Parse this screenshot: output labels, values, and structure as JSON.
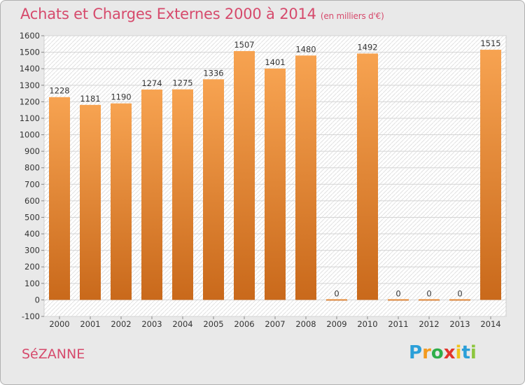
{
  "header": {
    "title": "Achats et Charges Externes 2000 à 2014",
    "subtitle": "(en milliers d'€)"
  },
  "footer": {
    "city": "SéZANNE"
  },
  "logo": {
    "text": "Proxiti",
    "letters": [
      {
        "ch": "P",
        "color": "#2b9fd8"
      },
      {
        "ch": "r",
        "color": "#f39a1f"
      },
      {
        "ch": "o",
        "color": "#2fae4a"
      },
      {
        "ch": "x",
        "color": "#e2352b"
      },
      {
        "ch": "i",
        "color": "#f0c419"
      },
      {
        "ch": "t",
        "color": "#2b9fd8"
      },
      {
        "ch": "i",
        "color": "#8dc63f"
      }
    ]
  },
  "chart_data": {
    "type": "bar",
    "categories": [
      "2000",
      "2001",
      "2002",
      "2003",
      "2004",
      "2005",
      "2006",
      "2007",
      "2008",
      "2009",
      "2010",
      "2011",
      "2012",
      "2013",
      "2014"
    ],
    "values": [
      1228,
      1181,
      1190,
      1274,
      1275,
      1336,
      1507,
      1401,
      1480,
      0,
      1492,
      0,
      0,
      0,
      1515
    ],
    "data_labels": [
      "1228",
      "1181",
      "1190",
      "1274",
      "1275",
      "1336",
      "1507",
      "1401",
      "1480",
      "0",
      "1492",
      "0",
      "0",
      "0",
      "1515"
    ],
    "title": "Achats et Charges Externes 2000 à 2014",
    "subtitle": "(en milliers d'€)",
    "xlabel": "",
    "ylabel": "",
    "ylim": [
      -100,
      1600
    ],
    "yticks": [
      -100,
      0,
      100,
      200,
      300,
      400,
      500,
      600,
      700,
      800,
      900,
      1000,
      1100,
      1200,
      1300,
      1400,
      1500,
      1600
    ],
    "grid": true,
    "bar_color_light": "#f7a351",
    "bar_color_dark": "#c9691b"
  }
}
